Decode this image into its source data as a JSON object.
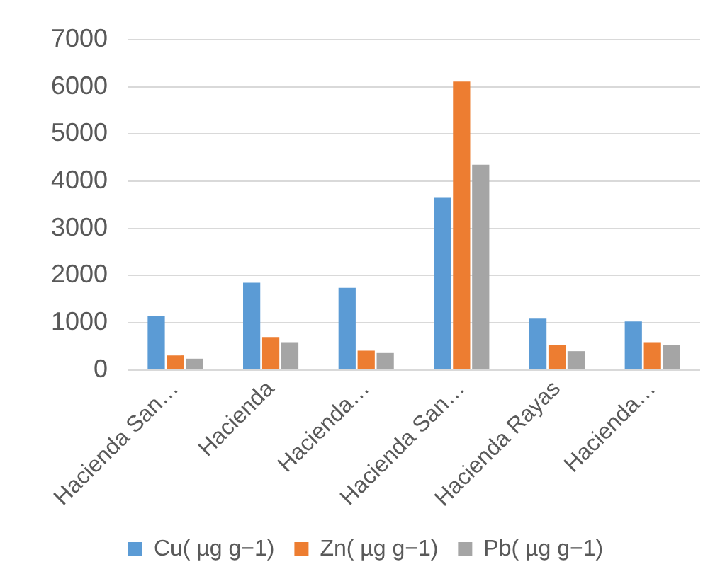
{
  "chart_data": {
    "type": "bar",
    "categories": [
      "Hacienda San…",
      "Hacienda",
      "Hacienda…",
      "Hacienda San…",
      "Hacienda Rayas",
      "Hacienda…"
    ],
    "series": [
      {
        "name": "Cu( µg g−1)",
        "color": "#5b9bd5",
        "values": [
          1150,
          1850,
          1740,
          3650,
          1090,
          1030
        ]
      },
      {
        "name": "Zn( µg g−1)",
        "color": "#ed7d31",
        "values": [
          310,
          700,
          410,
          6110,
          530,
          590
        ]
      },
      {
        "name": "Pb( µg g−1)",
        "color": "#a5a5a5",
        "values": [
          240,
          590,
          360,
          4350,
          400,
          530
        ]
      }
    ],
    "ylim": [
      0,
      7000
    ],
    "yticks": [
      0,
      1000,
      2000,
      3000,
      4000,
      5000,
      6000,
      7000
    ],
    "grid": "y",
    "legend": "bottom"
  }
}
